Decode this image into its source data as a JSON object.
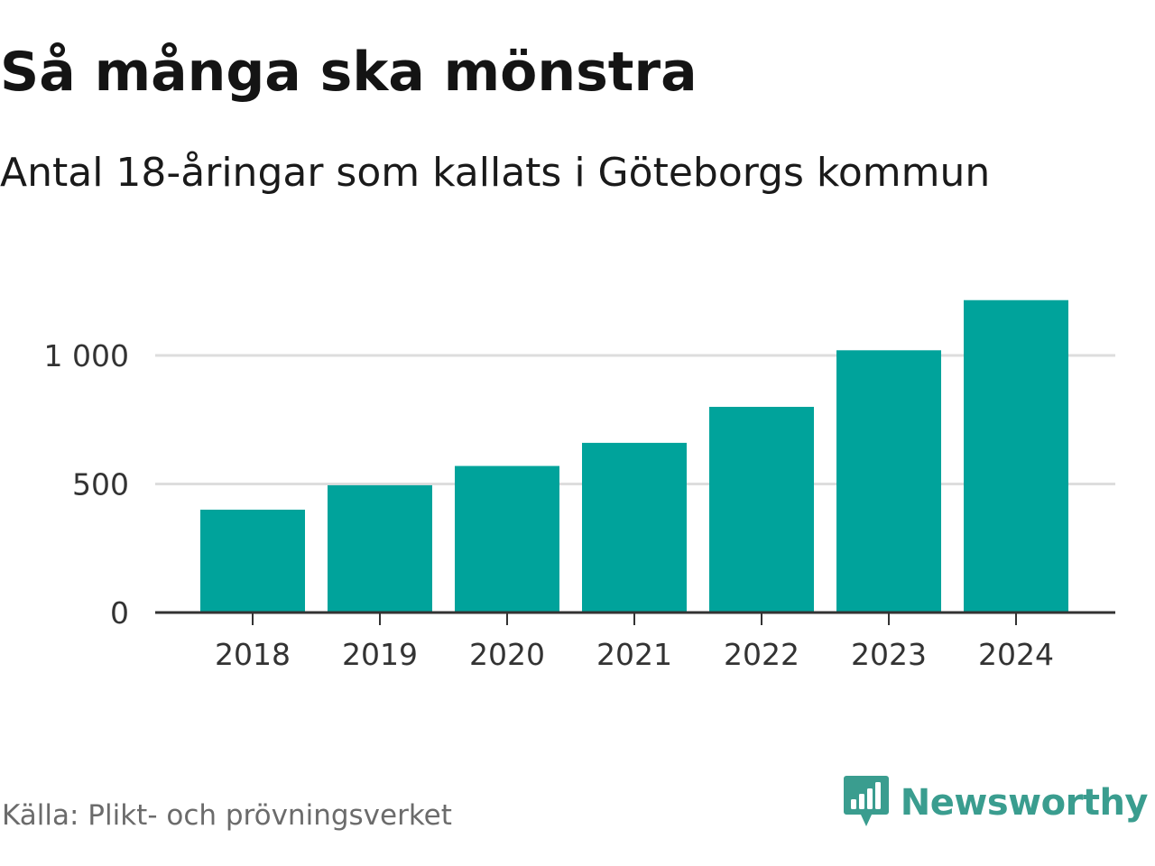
{
  "header": {
    "title": "Så många ska mönstra",
    "subtitle": "Antal 18-åringar som kallats i Göteborgs kommun"
  },
  "footer": {
    "source": "Källa: Plikt- och prövningsverket",
    "brand": "Newsworthy",
    "brand_icon": "newsworthy-logo-icon"
  },
  "colors": {
    "bar": "#00a39b",
    "grid": "#dddddd",
    "axis": "#333333",
    "brand": "#3a9d8f"
  },
  "chart_data": {
    "type": "bar",
    "title": "Så många ska mönstra",
    "subtitle": "Antal 18-åringar som kallats i Göteborgs kommun",
    "xlabel": "",
    "ylabel": "",
    "categories": [
      "2018",
      "2019",
      "2020",
      "2021",
      "2022",
      "2023",
      "2024"
    ],
    "values": [
      400,
      495,
      570,
      660,
      800,
      1020,
      1215
    ],
    "ylim": [
      0,
      1300
    ],
    "yticks": [
      0,
      500,
      1000
    ],
    "ytick_labels": [
      "0",
      "500",
      "1 000"
    ],
    "grid": true,
    "legend": "none"
  }
}
